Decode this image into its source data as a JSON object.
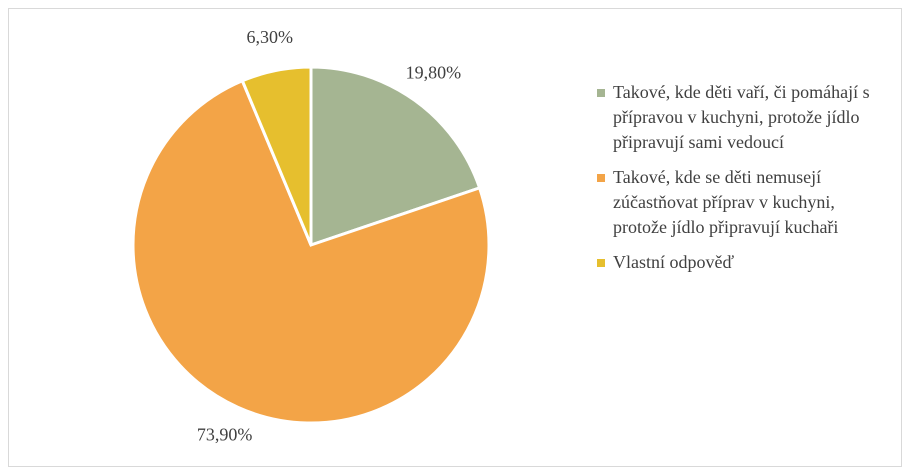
{
  "chart_data": {
    "type": "pie",
    "categories": [
      "Takové, kde děti vaří, či pomáhají s přípravou v kuchyni, protože jídlo připravují sami vedoucí",
      "Takové, kde se děti nemusejí zúčastňovat příprav v kuchyni, protože jídlo připravují kuchaři",
      "Vlastní odpověď"
    ],
    "values": [
      19.8,
      73.9,
      6.3
    ],
    "value_labels": [
      "19,80%",
      "73,90%",
      "6,30%"
    ],
    "colors": [
      "#a5b592",
      "#f3a447",
      "#e6bf2e"
    ],
    "legend": "right"
  }
}
